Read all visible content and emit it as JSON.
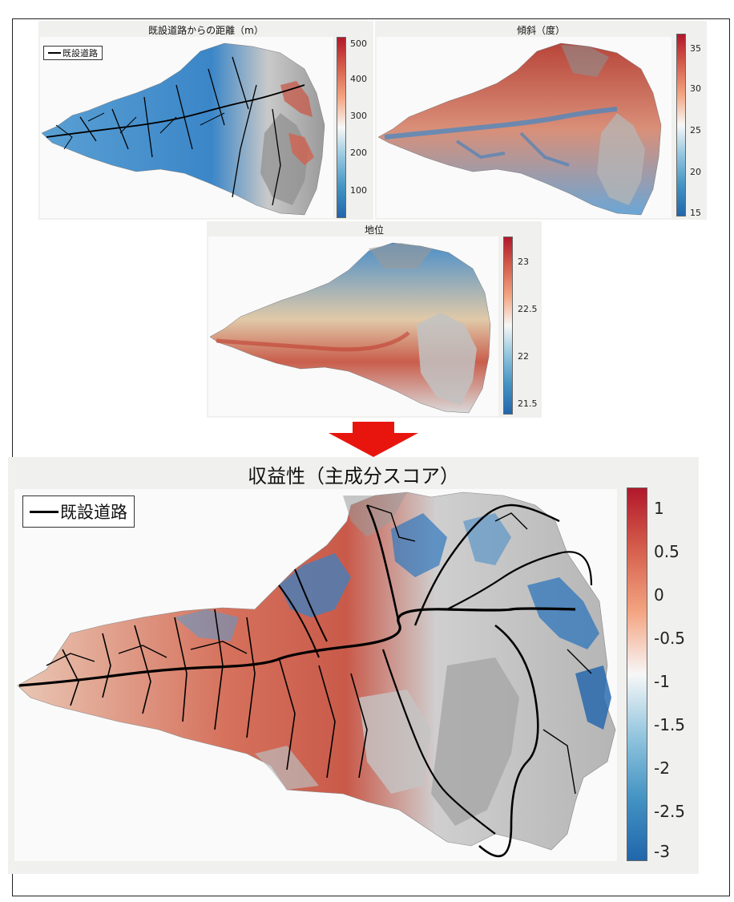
{
  "maps": {
    "distance": {
      "title": "既設道路からの距離（m）",
      "legend_label": "既設道路",
      "colorbar_ticks": [
        "500",
        "400",
        "300",
        "200",
        "100"
      ],
      "colorbar_colors": [
        "#b2182b",
        "#d6604d",
        "#f4a582",
        "#f7f7f7",
        "#92c5de",
        "#4393c3",
        "#2166ac"
      ]
    },
    "slope": {
      "title": "傾斜（度）",
      "colorbar_ticks": [
        "35",
        "30",
        "25",
        "20",
        "15"
      ],
      "colorbar_colors": [
        "#b2182b",
        "#d6604d",
        "#f4a582",
        "#f7f7f7",
        "#92c5de",
        "#4393c3",
        "#2166ac"
      ]
    },
    "site_index": {
      "title": "地位",
      "colorbar_ticks": [
        "23",
        "22.5",
        "22",
        "21.5"
      ],
      "colorbar_colors": [
        "#b2182b",
        "#d6604d",
        "#f4a582",
        "#f7f7f7",
        "#92c5de",
        "#4393c3",
        "#2166ac"
      ]
    },
    "profitability": {
      "title": "収益性（主成分スコア）",
      "legend_label": "既設道路",
      "colorbar_ticks": [
        "1",
        "0.5",
        "0",
        "-0.5",
        "-1",
        "-1.5",
        "-2",
        "-2.5",
        "-3"
      ],
      "colorbar_colors": [
        "#b2182b",
        "#d6604d",
        "#f4a582",
        "#f7f7f7",
        "#92c5de",
        "#4393c3",
        "#2166ac"
      ]
    }
  },
  "arrow_color": "#e8150f"
}
